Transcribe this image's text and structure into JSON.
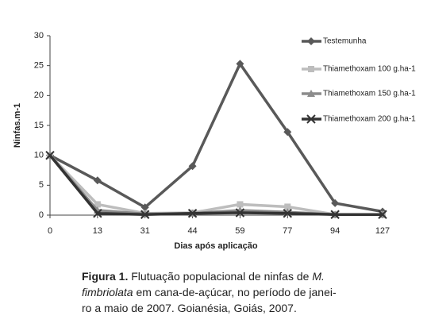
{
  "chart_data": {
    "type": "line",
    "y_label": "Ninfas.m-1",
    "x_label": "Dias após aplicação",
    "categories": [
      "0",
      "13",
      "31",
      "44",
      "59",
      "77",
      "94",
      "127"
    ],
    "series": [
      {
        "name": "Testemunha",
        "color": "#595959",
        "marker": "diamond",
        "values": [
          10,
          5.8,
          1.3,
          8.2,
          25.3,
          13.9,
          2,
          0.6
        ]
      },
      {
        "name": "Thiamethoxam 100 g.ha-1",
        "color": "#bdbdbd",
        "marker": "square",
        "values": [
          10,
          1.8,
          0.3,
          0.4,
          1.8,
          1.4,
          0.1,
          0.1
        ]
      },
      {
        "name": "Thiamethoxam 150 g.ha-1",
        "color": "#8c8c8c",
        "marker": "triangle",
        "values": [
          10,
          0.8,
          0.2,
          0.3,
          0.8,
          0.5,
          0.1,
          0.1
        ]
      },
      {
        "name": "Thiamethoxam 200 g.ha-1",
        "color": "#333333",
        "marker": "x",
        "values": [
          10,
          0.3,
          0.1,
          0.3,
          0.4,
          0.3,
          0.1,
          0.1
        ]
      }
    ],
    "ylim": [
      0,
      30
    ],
    "yticks": [
      0,
      5,
      10,
      15,
      20,
      25,
      30
    ],
    "legend": "right"
  },
  "caption": {
    "lines": [
      [
        "Figura 1.",
        " Flutuação populacional de ninfas de ",
        "M."
      ],
      [
        "fimbriolata",
        " em cana-de-açúcar, no período de janei-"
      ],
      [
        "ro a maio de 2007. Goianésia, Goiás, 2007."
      ]
    ]
  }
}
